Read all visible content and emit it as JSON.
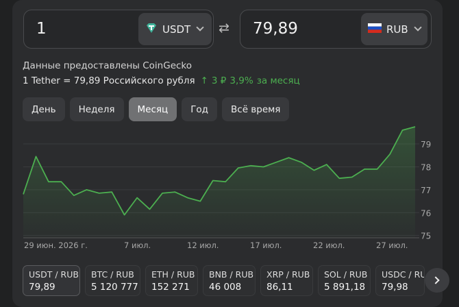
{
  "converter": {
    "from": {
      "value": "1",
      "currency": "USDT",
      "icon": "tether-icon"
    },
    "to": {
      "value": "79,89",
      "currency": "RUB",
      "icon": "russia-flag-icon"
    },
    "swap_icon": "swap-arrows-icon"
  },
  "info": {
    "source": "Данные предоставлены CoinGecko",
    "rate": "1 Tether = 79,89 Российского рубля",
    "change_abs": "3 ₽",
    "change_pct": "3,9%",
    "change_period": "за месяц",
    "change_color": "#4caf50"
  },
  "periods": [
    {
      "label": "День",
      "active": false
    },
    {
      "label": "Неделя",
      "active": false
    },
    {
      "label": "Месяц",
      "active": true
    },
    {
      "label": "Год",
      "active": false
    },
    {
      "label": "Всё время",
      "active": false
    }
  ],
  "chart_data": {
    "type": "area",
    "x_ticks": [
      "29 июн. 2026 г.",
      "7 июл.",
      "12 июл.",
      "17 июл.",
      "22 июл.",
      "27 июл."
    ],
    "y_ticks": [
      "79",
      "78",
      "77",
      "76",
      "75"
    ],
    "ylim": [
      74.9,
      79.9
    ],
    "color": "#4caf50",
    "series": [
      {
        "values": [
          76.8,
          78.45,
          77.35,
          77.35,
          76.75,
          77.0,
          76.85,
          76.9,
          75.9,
          76.65,
          76.15,
          76.85,
          76.9,
          76.65,
          76.5,
          77.4,
          77.35,
          77.95,
          78.05,
          78.0,
          78.2,
          78.4,
          78.2,
          77.85,
          78.1,
          77.5,
          77.55,
          77.9,
          77.9,
          78.55,
          79.6,
          79.75
        ]
      }
    ]
  },
  "pairs": [
    {
      "name": "USDT / RUB",
      "value": "79,89",
      "active": true
    },
    {
      "name": "BTC / RUB",
      "value": "5 120 777",
      "active": false
    },
    {
      "name": "ETH / RUB",
      "value": "152 271",
      "active": false
    },
    {
      "name": "BNB / RUB",
      "value": "46 008",
      "active": false
    },
    {
      "name": "XRP / RUB",
      "value": "86,11",
      "active": false
    },
    {
      "name": "SOL / RUB",
      "value": "5 891,18",
      "active": false
    },
    {
      "name": "USDC / RUB",
      "value": "79,98",
      "active": false
    }
  ]
}
